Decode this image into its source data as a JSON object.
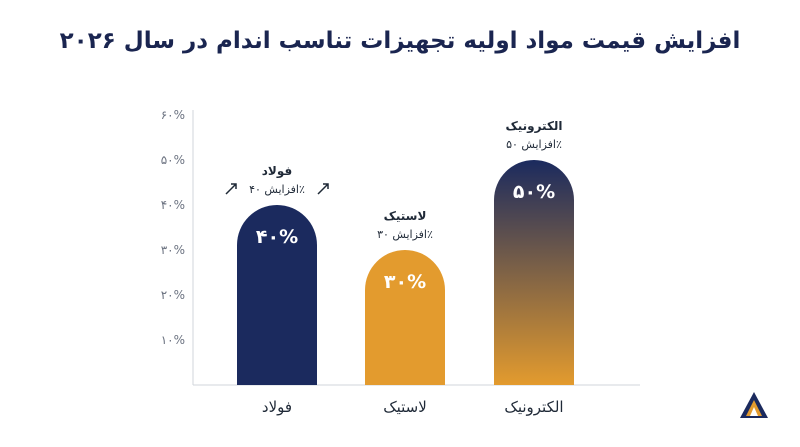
{
  "chart_data": {
    "type": "bar",
    "title": "افزایش قیمت مواد اولیه تجهیزات تناسب اندام در سال ۲۰۲۶",
    "categories": [
      "فولاد",
      "لاستیک",
      "الکترونیک"
    ],
    "values": [
      40,
      30,
      50
    ],
    "value_labels": [
      "۴۰%",
      "۳۰%",
      "۵۰%"
    ],
    "annotations": [
      {
        "name": "فولاد",
        "sub": "افزایش ۴۰٪"
      },
      {
        "name": "لاستیک",
        "sub": "افزایش ۳۰٪"
      },
      {
        "name": "الکترونیک",
        "sub": "افزایش ۵۰٪"
      }
    ],
    "y_ticks": [
      {
        "value": 10,
        "label": "۱۰%"
      },
      {
        "value": 20,
        "label": "۲۰%"
      },
      {
        "value": 30,
        "label": "۳۰%"
      },
      {
        "value": 40,
        "label": "۴۰%"
      },
      {
        "value": 50,
        "label": "۵۰%"
      },
      {
        "value": 60,
        "label": "۶۰%"
      }
    ],
    "ylim": [
      0,
      60
    ],
    "grid": false,
    "colors": {
      "steel": "#1b2a5e",
      "rubber": "#e39b2e",
      "electronics_top": "#1b2a5e",
      "electronics_bottom": "#e39b2e",
      "axis": "#d1d5db"
    }
  }
}
